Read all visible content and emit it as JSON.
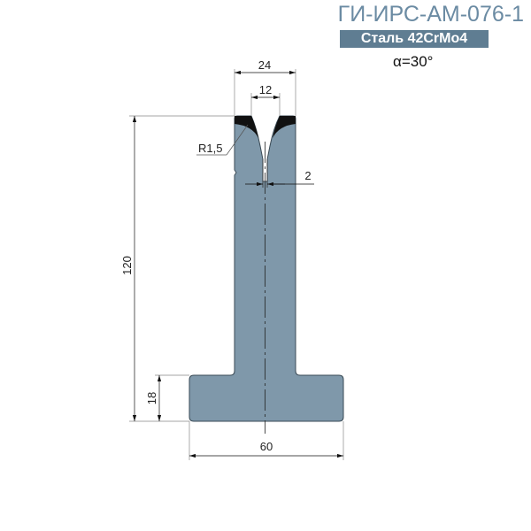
{
  "title": "ГИ-ИРС-АМ-076-1",
  "material_badge": "Сталь 42CrMo4",
  "angle": "α=30°",
  "dimensions": {
    "top_width": "24",
    "groove_width": "12",
    "slot_width": "2",
    "height": "120",
    "base_height": "18",
    "base_width": "60",
    "radius": "R1,5"
  },
  "colors": {
    "title": "#6b8ba3",
    "badge_bg": "#5f7d92",
    "part_fill": "#7f98aa",
    "outline": "#3a4a55"
  }
}
